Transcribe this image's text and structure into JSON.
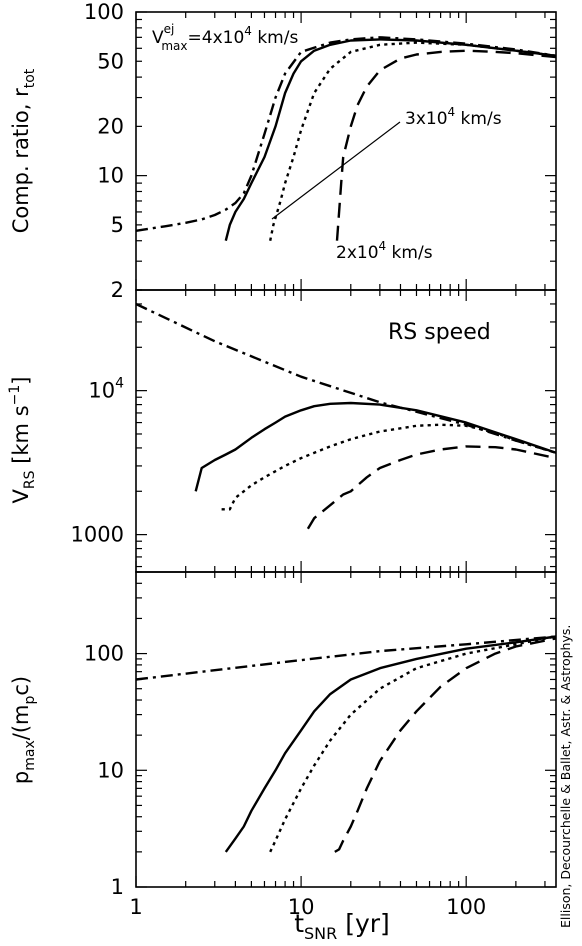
{
  "chart_data": [
    {
      "type": "line",
      "ylabel": "Comp. ratio, r",
      "ylabel_sub": "tot",
      "xscale": "log",
      "yscale": "log",
      "xlim": [
        1,
        350
      ],
      "ylim": [
        2,
        100
      ],
      "y_tick_labels": [
        {
          "v": 2,
          "t": "2"
        },
        {
          "v": 5,
          "t": "5"
        },
        {
          "v": 10,
          "t": "10"
        },
        {
          "v": 20,
          "t": "20"
        },
        {
          "v": 50,
          "t": "50"
        },
        {
          "v": 100,
          "t": "100"
        }
      ],
      "annotations": {
        "v4": {
          "pre": "V",
          "sup": "ej",
          "sub": "max",
          "post": "=4x10",
          "exp": "4",
          "unit": " km/s"
        },
        "v3": {
          "pre": "3x10",
          "exp": "4",
          "unit": " km/s"
        },
        "v2": {
          "pre": "2x10",
          "exp": "4",
          "unit": " km/s"
        }
      },
      "series": [
        {
          "style": "dashdot",
          "x": [
            1,
            1.5,
            2,
            2.5,
            3,
            3.5,
            4,
            4.5,
            5,
            6,
            7,
            8,
            10,
            15,
            20,
            30,
            50,
            100,
            200,
            350
          ],
          "y": [
            4.6,
            4.9,
            5.15,
            5.4,
            5.75,
            6.2,
            6.8,
            7.8,
            10,
            18,
            30,
            42,
            57,
            65,
            68,
            70,
            68,
            64,
            59,
            54
          ]
        },
        {
          "style": "solid",
          "x": [
            3.5,
            3.7,
            4,
            4.5,
            5,
            6,
            7,
            8,
            9,
            10,
            12,
            15,
            20,
            30,
            50,
            100,
            200,
            350
          ],
          "y": [
            4,
            5,
            6,
            7.2,
            9,
            13,
            20,
            32,
            42,
            50,
            58,
            63,
            67,
            68,
            67,
            63,
            58,
            54
          ]
        },
        {
          "style": "dotted",
          "x": [
            6.5,
            6.8,
            7.5,
            8,
            9,
            10,
            12,
            15,
            20,
            30,
            50,
            100,
            200,
            350
          ],
          "y": [
            4,
            5,
            7,
            9,
            13,
            19,
            32,
            45,
            57,
            63,
            65,
            63,
            58,
            54
          ]
        },
        {
          "style": "dashed",
          "x": [
            16.5,
            17,
            17.5,
            18,
            20,
            22,
            25,
            30,
            40,
            50,
            70,
            100,
            150,
            200,
            350
          ],
          "y": [
            4,
            6,
            9,
            13,
            20,
            27,
            35,
            44,
            52,
            55,
            57,
            58,
            57,
            56,
            53
          ]
        }
      ]
    },
    {
      "type": "line",
      "ylabel": "V",
      "ylabel_sub": "RS",
      "yunit": {
        "pre": "[km s",
        "sup": "−1",
        "post": "]"
      },
      "title": "RS speed",
      "xscale": "log",
      "yscale": "log",
      "xlim": [
        1,
        350
      ],
      "ylim": [
        550,
        50000
      ],
      "y_tick_labels": [
        {
          "v": 1000,
          "t": "1000"
        },
        {
          "v": 10000,
          "base": "10",
          "exp": "4"
        }
      ],
      "series": [
        {
          "style": "dashdot",
          "x": [
            1,
            3,
            10,
            30,
            100,
            200,
            350
          ],
          "y": [
            40000,
            22000,
            12500,
            8300,
            5800,
            4500,
            3700
          ]
        },
        {
          "style": "solid",
          "x": [
            2.3,
            2.5,
            3,
            3.5,
            4,
            5,
            6,
            7,
            8,
            10,
            12,
            15,
            20,
            30,
            50,
            100,
            200,
            350
          ],
          "y": [
            2000,
            2900,
            3300,
            3600,
            3900,
            4700,
            5400,
            6000,
            6600,
            7300,
            7800,
            8100,
            8200,
            8000,
            7300,
            6000,
            4600,
            3700
          ]
        },
        {
          "style": "dotted",
          "x": [
            3.3,
            3.7,
            4,
            5,
            6,
            8,
            10,
            15,
            20,
            30,
            50,
            70,
            100,
            150,
            200,
            350
          ],
          "y": [
            1500,
            1500,
            1800,
            2200,
            2500,
            3000,
            3400,
            4100,
            4600,
            5200,
            5700,
            5800,
            5700,
            5100,
            4500,
            3700
          ]
        },
        {
          "style": "dashed",
          "x": [
            11,
            12,
            15,
            18,
            20,
            22,
            25,
            30,
            40,
            50,
            70,
            100,
            150,
            200,
            350
          ],
          "y": [
            1100,
            1300,
            1600,
            1900,
            2000,
            2200,
            2500,
            2900,
            3300,
            3600,
            3900,
            4100,
            4050,
            3900,
            3400
          ]
        }
      ]
    },
    {
      "type": "line",
      "ylabel": {
        "pre": "p",
        "sub1": "max",
        "mid": "/(m",
        "sub2": "p",
        "post": "c)"
      },
      "xlabel": {
        "pre": "t",
        "sub": "SNR",
        "post": " [yr]"
      },
      "xscale": "log",
      "yscale": "log",
      "xlim": [
        1,
        350
      ],
      "ylim": [
        1,
        500
      ],
      "x_tick_labels": [
        {
          "v": 1,
          "t": "1"
        },
        {
          "v": 10,
          "t": "10"
        },
        {
          "v": 100,
          "t": "100"
        }
      ],
      "y_tick_labels": [
        {
          "v": 1,
          "t": "1"
        },
        {
          "v": 10,
          "t": "10"
        },
        {
          "v": 100,
          "t": "100"
        }
      ],
      "series": [
        {
          "style": "dashdot",
          "x": [
            1,
            3,
            10,
            30,
            100,
            350
          ],
          "y": [
            60,
            72,
            88,
            105,
            120,
            140
          ]
        },
        {
          "style": "solid",
          "x": [
            3.5,
            4,
            4.5,
            5,
            6,
            7,
            8,
            10,
            12,
            15,
            20,
            30,
            50,
            100,
            200,
            350
          ],
          "y": [
            2,
            2.6,
            3.3,
            4.5,
            7,
            10,
            14,
            22,
            32,
            45,
            60,
            75,
            90,
            110,
            125,
            140
          ]
        },
        {
          "style": "dotted",
          "x": [
            6.5,
            7,
            8,
            10,
            12,
            15,
            20,
            30,
            50,
            100,
            200,
            350
          ],
          "y": [
            2,
            2.5,
            3.8,
            7,
            11,
            18,
            30,
            50,
            75,
            100,
            120,
            140
          ]
        },
        {
          "style": "dashed",
          "x": [
            16,
            17,
            18,
            20,
            22,
            25,
            30,
            40,
            50,
            70,
            100,
            150,
            200,
            350
          ],
          "y": [
            2,
            2.1,
            2.5,
            3.3,
            4.5,
            7,
            12,
            22,
            32,
            52,
            75,
            100,
            115,
            135
          ]
        }
      ]
    }
  ],
  "credit": "Ellison, Decourchelle & Ballet, Astr. & Astrophys."
}
